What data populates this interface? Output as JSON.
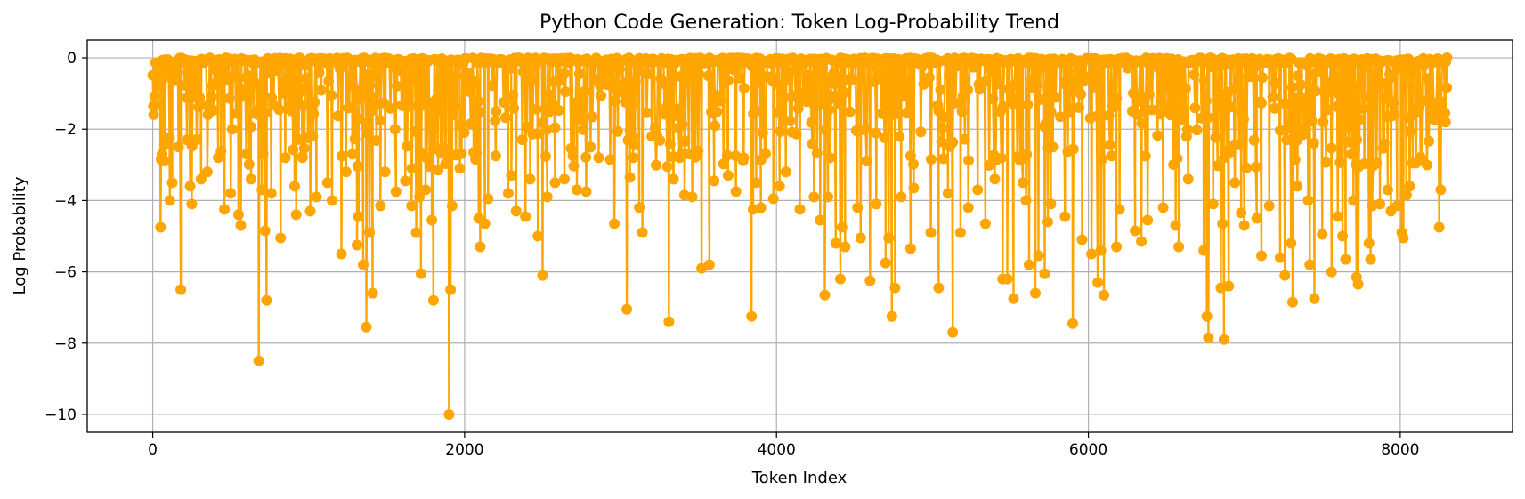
{
  "chart_data": {
    "type": "line",
    "title": "Python Code Generation: Token Log-Probability Trend",
    "xlabel": "Token Index",
    "ylabel": "Log Probability",
    "xlim": [
      -420,
      8720
    ],
    "ylim": [
      -10.5,
      0.5
    ],
    "xticks": [
      0,
      2000,
      4000,
      6000,
      8000
    ],
    "yticks": [
      0,
      -2,
      -4,
      -6,
      -8,
      -10
    ],
    "grid": true,
    "legend": "none",
    "marker": "circle",
    "n_tokens": 8300,
    "series": [
      {
        "color": "#FFA500",
        "dips": [
          [
            5,
            -1.35
          ],
          [
            30,
            -0.8
          ],
          [
            50,
            -4.75
          ],
          [
            60,
            -2.7
          ],
          [
            75,
            -2.45
          ],
          [
            110,
            -4.0
          ],
          [
            125,
            -3.5
          ],
          [
            165,
            -2.5
          ],
          [
            180,
            -6.5
          ],
          [
            220,
            -2.3
          ],
          [
            240,
            -3.6
          ],
          [
            250,
            -4.1
          ],
          [
            310,
            -3.4
          ],
          [
            350,
            -3.2
          ],
          [
            420,
            -2.8
          ],
          [
            460,
            -4.25
          ],
          [
            500,
            -3.8
          ],
          [
            550,
            -4.4
          ],
          [
            565,
            -4.7
          ],
          [
            600,
            -2.7
          ],
          [
            630,
            -3.4
          ],
          [
            680,
            -8.5
          ],
          [
            700,
            -3.7
          ],
          [
            720,
            -4.85
          ],
          [
            730,
            -6.8
          ],
          [
            760,
            -3.8
          ],
          [
            820,
            -5.05
          ],
          [
            850,
            -2.8
          ],
          [
            910,
            -3.6
          ],
          [
            920,
            -4.4
          ],
          [
            960,
            -2.8
          ],
          [
            1010,
            -4.3
          ],
          [
            1050,
            -3.9
          ],
          [
            1120,
            -3.5
          ],
          [
            1150,
            -4.0
          ],
          [
            1210,
            -5.5
          ],
          [
            1240,
            -3.2
          ],
          [
            1280,
            -2.7
          ],
          [
            1310,
            -5.25
          ],
          [
            1320,
            -4.45
          ],
          [
            1350,
            -5.8
          ],
          [
            1370,
            -7.55
          ],
          [
            1390,
            -4.9
          ],
          [
            1410,
            -6.6
          ],
          [
            1460,
            -4.15
          ],
          [
            1490,
            -3.2
          ],
          [
            1560,
            -3.75
          ],
          [
            1620,
            -3.45
          ],
          [
            1660,
            -4.15
          ],
          [
            1690,
            -4.9
          ],
          [
            1710,
            -3.9
          ],
          [
            1720,
            -6.05
          ],
          [
            1750,
            -3.7
          ],
          [
            1790,
            -4.55
          ],
          [
            1800,
            -6.8
          ],
          [
            1830,
            -3.15
          ],
          [
            1880,
            -2.7
          ],
          [
            1900,
            -10.0
          ],
          [
            1910,
            -6.5
          ],
          [
            1920,
            -4.15
          ],
          [
            1970,
            -3.1
          ],
          [
            2090,
            -4.5
          ],
          [
            2100,
            -5.3
          ],
          [
            2130,
            -4.65
          ],
          [
            2150,
            -3.95
          ],
          [
            2200,
            -2.75
          ],
          [
            2280,
            -3.8
          ],
          [
            2300,
            -3.3
          ],
          [
            2330,
            -4.3
          ],
          [
            2390,
            -4.45
          ],
          [
            2420,
            -3.4
          ],
          [
            2470,
            -5.0
          ],
          [
            2500,
            -6.1
          ],
          [
            2530,
            -3.9
          ],
          [
            2580,
            -3.5
          ],
          [
            2640,
            -3.4
          ],
          [
            2720,
            -3.7
          ],
          [
            2780,
            -3.75
          ],
          [
            2860,
            -2.8
          ],
          [
            2960,
            -4.65
          ],
          [
            3040,
            -7.05
          ],
          [
            3060,
            -3.35
          ],
          [
            3080,
            -2.8
          ],
          [
            3120,
            -4.2
          ],
          [
            3140,
            -4.9
          ],
          [
            3200,
            -2.2
          ],
          [
            3300,
            -3.05
          ],
          [
            3310,
            -7.4
          ],
          [
            3340,
            -3.4
          ],
          [
            3390,
            -2.7
          ],
          [
            3410,
            -3.85
          ],
          [
            3460,
            -3.9
          ],
          [
            3520,
            -5.9
          ],
          [
            3570,
            -5.8
          ],
          [
            3600,
            -3.45
          ],
          [
            3690,
            -3.3
          ],
          [
            3740,
            -3.75
          ],
          [
            3790,
            -2.8
          ],
          [
            3840,
            -7.25
          ],
          [
            3850,
            -4.25
          ],
          [
            3870,
            -3.5
          ],
          [
            3900,
            -4.2
          ],
          [
            3980,
            -3.95
          ],
          [
            4020,
            -3.6
          ],
          [
            4060,
            -3.2
          ],
          [
            4150,
            -4.25
          ],
          [
            4240,
            -3.9
          ],
          [
            4280,
            -4.55
          ],
          [
            4310,
            -6.65
          ],
          [
            4330,
            -3.9
          ],
          [
            4380,
            -5.2
          ],
          [
            4410,
            -6.2
          ],
          [
            4420,
            -4.75
          ],
          [
            4440,
            -5.3
          ],
          [
            4520,
            -4.2
          ],
          [
            4540,
            -5.05
          ],
          [
            4600,
            -6.25
          ],
          [
            4640,
            -4.1
          ],
          [
            4700,
            -5.75
          ],
          [
            4720,
            -5.05
          ],
          [
            4740,
            -7.25
          ],
          [
            4760,
            -6.45
          ],
          [
            4800,
            -3.9
          ],
          [
            4860,
            -5.35
          ],
          [
            4880,
            -3.65
          ],
          [
            4990,
            -4.9
          ],
          [
            5040,
            -6.45
          ],
          [
            5100,
            -3.8
          ],
          [
            5130,
            -7.7
          ],
          [
            5180,
            -4.9
          ],
          [
            5230,
            -4.2
          ],
          [
            5290,
            -3.7
          ],
          [
            5340,
            -4.65
          ],
          [
            5400,
            -3.4
          ],
          [
            5450,
            -6.2
          ],
          [
            5480,
            -6.2
          ],
          [
            5520,
            -6.75
          ],
          [
            5580,
            -3.5
          ],
          [
            5600,
            -4.0
          ],
          [
            5620,
            -5.8
          ],
          [
            5660,
            -6.6
          ],
          [
            5680,
            -5.55
          ],
          [
            5720,
            -6.05
          ],
          [
            5740,
            -4.6
          ],
          [
            5760,
            -4.1
          ],
          [
            5850,
            -4.45
          ],
          [
            5900,
            -7.45
          ],
          [
            5960,
            -5.1
          ],
          [
            6020,
            -5.5
          ],
          [
            6060,
            -6.3
          ],
          [
            6080,
            -5.4
          ],
          [
            6100,
            -6.65
          ],
          [
            6180,
            -5.3
          ],
          [
            6200,
            -4.25
          ],
          [
            6300,
            -4.85
          ],
          [
            6340,
            -5.15
          ],
          [
            6380,
            -4.55
          ],
          [
            6480,
            -4.2
          ],
          [
            6560,
            -4.7
          ],
          [
            6580,
            -5.3
          ],
          [
            6640,
            -3.4
          ],
          [
            6740,
            -5.4
          ],
          [
            6760,
            -7.25
          ],
          [
            6770,
            -7.85
          ],
          [
            6800,
            -4.1
          ],
          [
            6850,
            -6.45
          ],
          [
            6860,
            -4.65
          ],
          [
            6870,
            -7.9
          ],
          [
            6900,
            -6.4
          ],
          [
            6940,
            -3.5
          ],
          [
            6980,
            -4.35
          ],
          [
            7000,
            -4.7
          ],
          [
            7080,
            -4.5
          ],
          [
            7110,
            -5.55
          ],
          [
            7160,
            -4.15
          ],
          [
            7230,
            -5.6
          ],
          [
            7260,
            -6.1
          ],
          [
            7300,
            -5.2
          ],
          [
            7310,
            -6.85
          ],
          [
            7340,
            -3.6
          ],
          [
            7410,
            -4.0
          ],
          [
            7420,
            -5.8
          ],
          [
            7450,
            -6.75
          ],
          [
            7500,
            -4.95
          ],
          [
            7560,
            -6.0
          ],
          [
            7600,
            -4.45
          ],
          [
            7630,
            -5.0
          ],
          [
            7650,
            -5.65
          ],
          [
            7700,
            -4.0
          ],
          [
            7720,
            -6.15
          ],
          [
            7730,
            -6.35
          ],
          [
            7800,
            -5.2
          ],
          [
            7810,
            -5.65
          ],
          [
            7820,
            -4.15
          ],
          [
            7870,
            -4.1
          ],
          [
            7920,
            -3.7
          ],
          [
            7940,
            -4.3
          ],
          [
            7980,
            -4.15
          ],
          [
            8010,
            -4.9
          ],
          [
            8020,
            -5.05
          ],
          [
            8040,
            -3.85
          ],
          [
            8060,
            -3.6
          ],
          [
            8080,
            -2.95
          ],
          [
            8250,
            -4.75
          ],
          [
            8260,
            -3.7
          ],
          [
            8290,
            -1.8
          ],
          [
            8300,
            0.0
          ]
        ]
      }
    ]
  }
}
